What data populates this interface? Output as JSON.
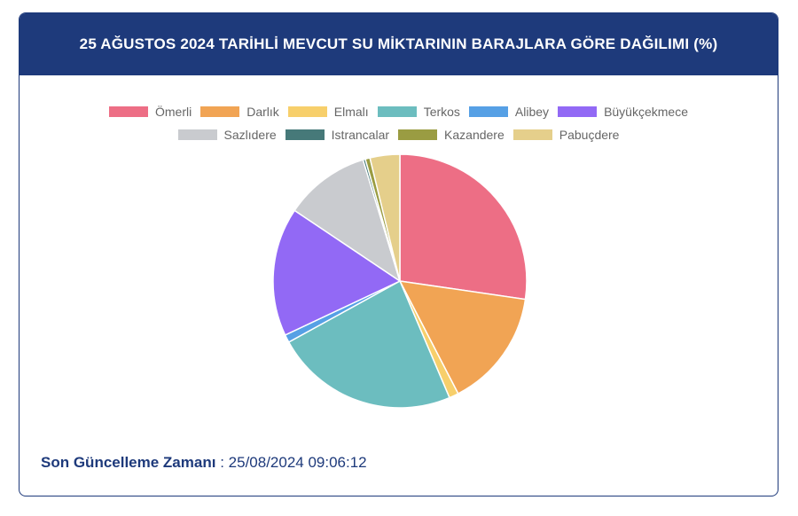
{
  "chart_data": {
    "type": "pie",
    "title": "25 AĞUSTOS 2024 TARİHLİ MEVCUT SU MİKTARININ BARAJLARA GÖRE DAĞILIMI (%)",
    "categories": [
      "Ömerli",
      "Darlık",
      "Elmalı",
      "Terkos",
      "Alibey",
      "Büyükçekmece",
      "Sazlıdere",
      "Istrancalar",
      "Kazandere",
      "Pabuçdere"
    ],
    "values": [
      27.3,
      15.1,
      1.2,
      23.4,
      1.0,
      16.4,
      10.9,
      0.3,
      0.6,
      3.8
    ],
    "colors": [
      "#ed6e85",
      "#f1a454",
      "#f7cf6b",
      "#6cbdbf",
      "#56a0e5",
      "#9269f5",
      "#c9cbcf",
      "#467979",
      "#9a9c42",
      "#e5cf8b"
    ],
    "legend": "top"
  },
  "footer": {
    "label": "Son Güncelleme Zamanı",
    "separator": ":",
    "value": "25/08/2024 09:06:12"
  }
}
